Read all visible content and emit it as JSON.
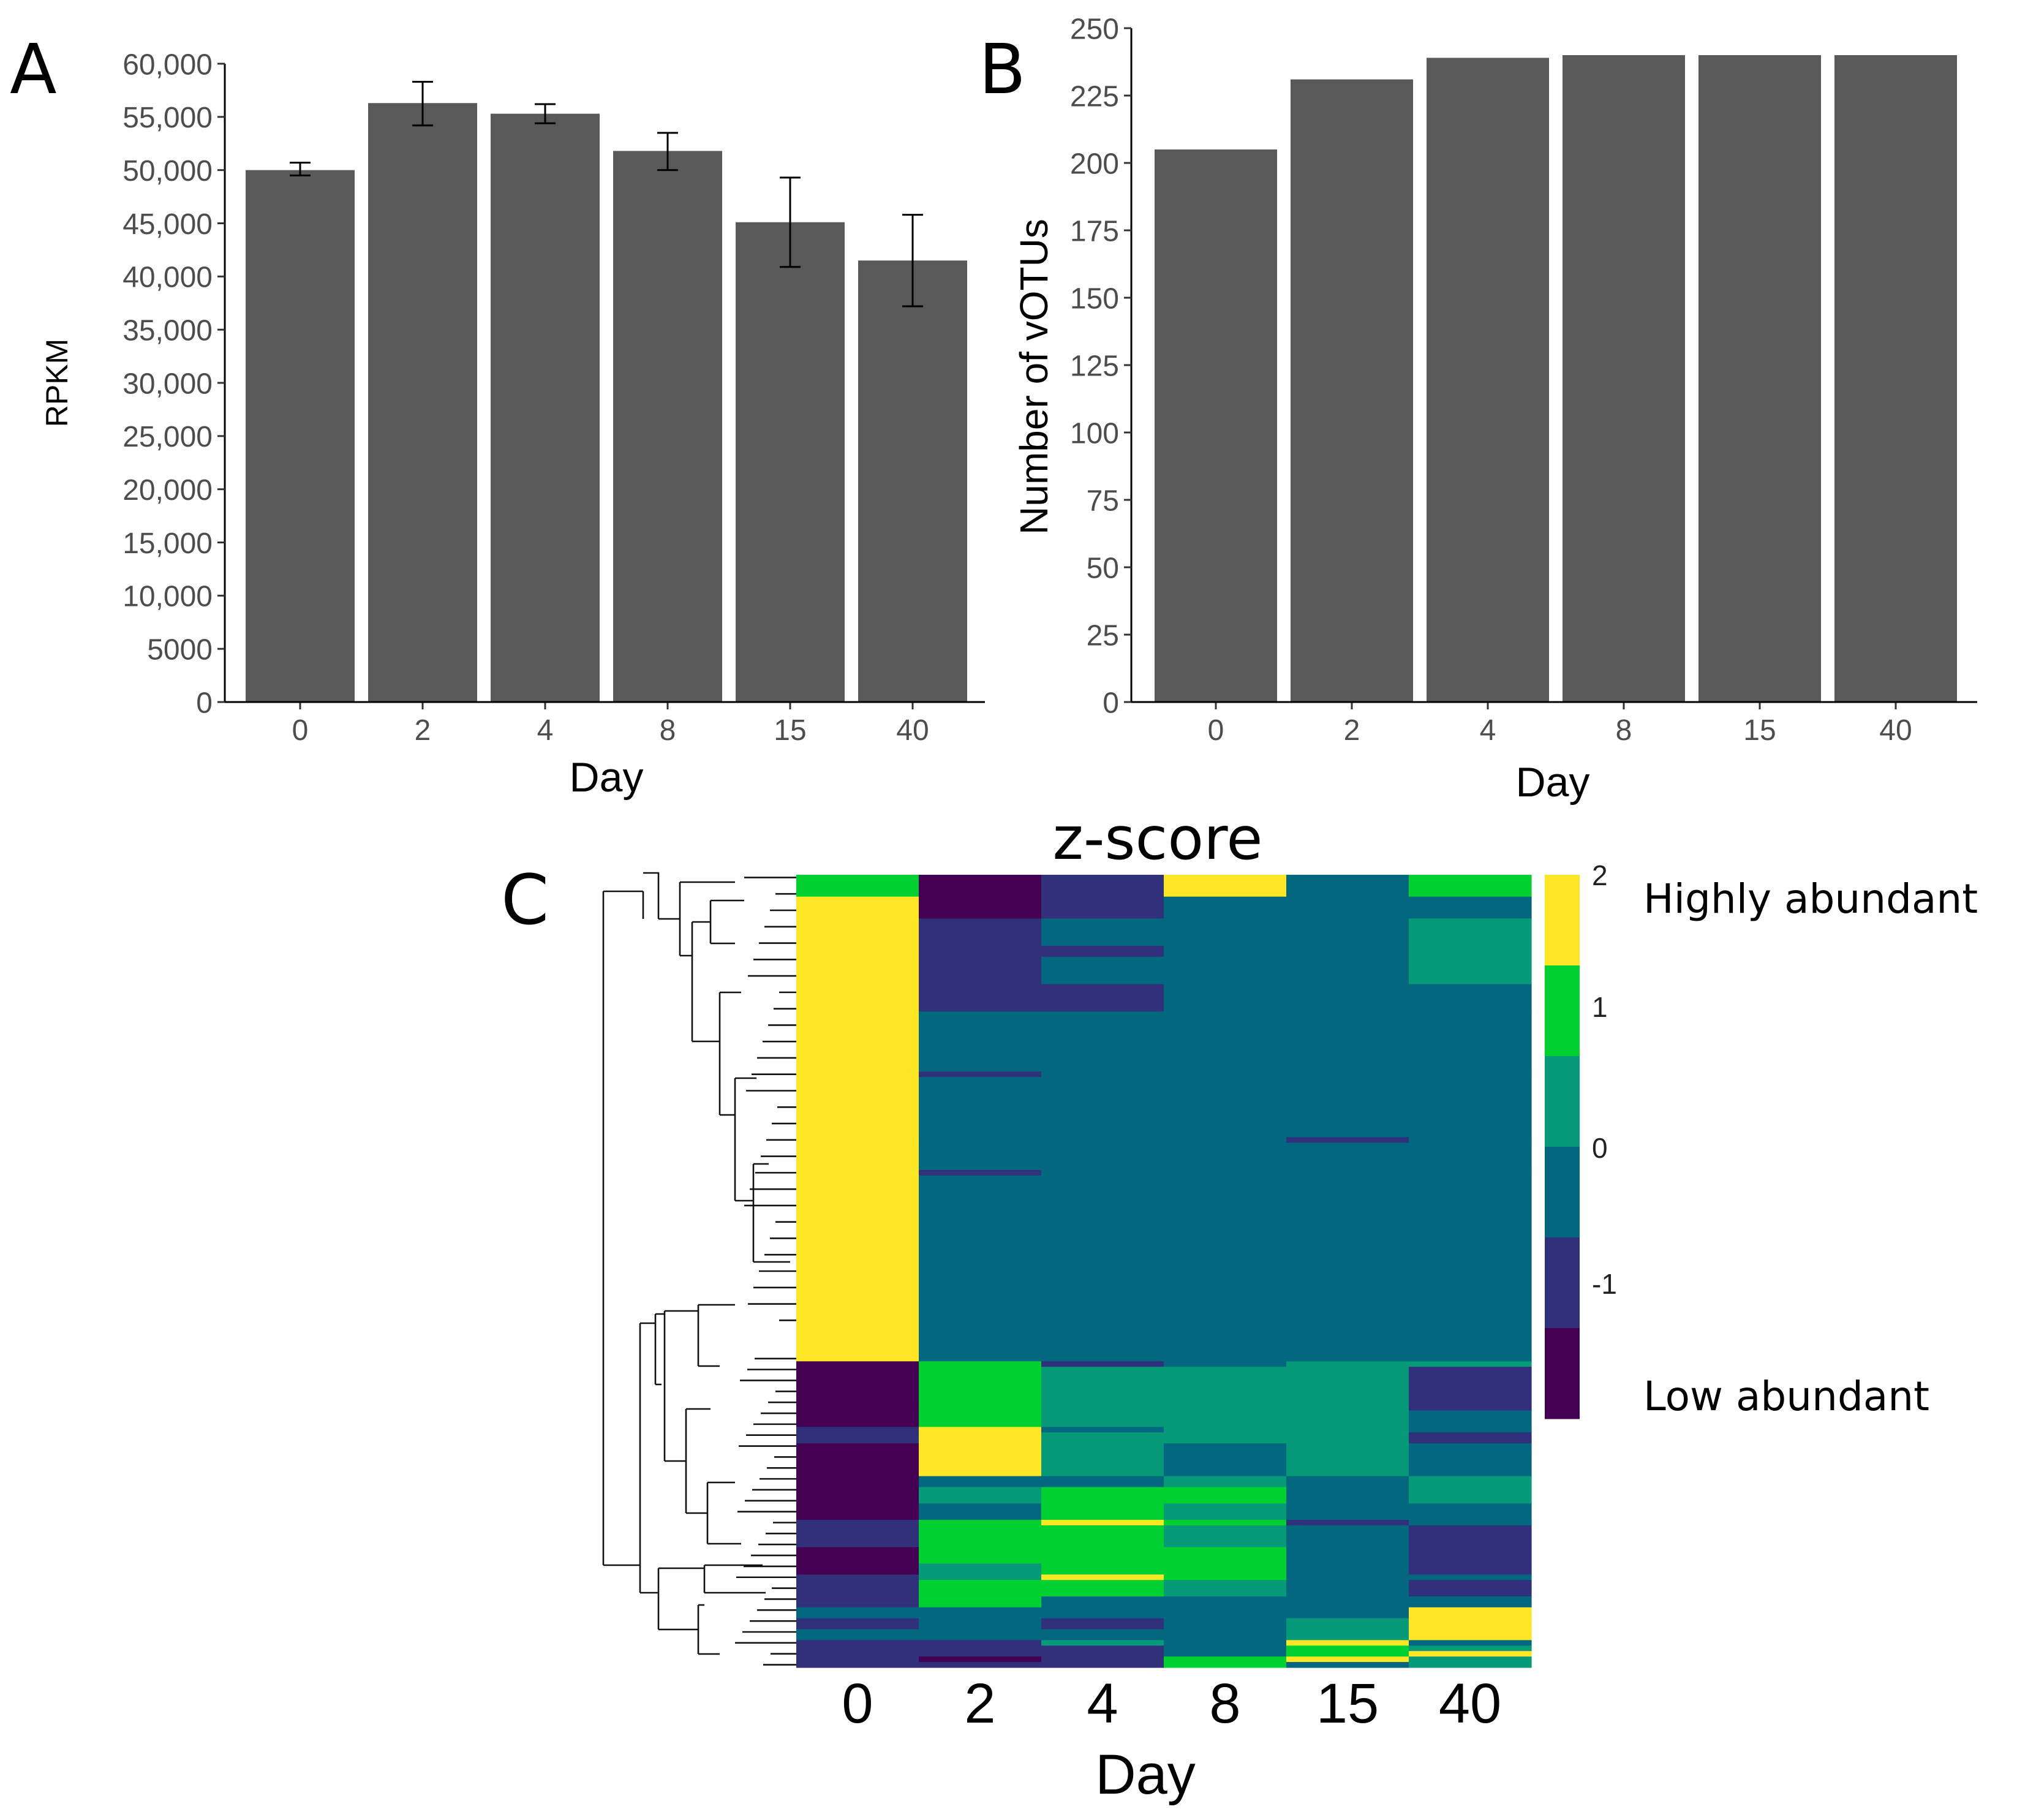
{
  "chart_data": [
    {
      "panel": "A",
      "type": "bar",
      "categories": [
        "0",
        "2",
        "4",
        "8",
        "15",
        "40"
      ],
      "values": [
        50000,
        56300,
        55300,
        51800,
        45100,
        41500
      ],
      "error_low": [
        49500,
        54200,
        54400,
        50000,
        40900,
        37200
      ],
      "error_high": [
        50700,
        58300,
        56200,
        53500,
        49300,
        45800
      ],
      "yticks": [
        0,
        5000,
        10000,
        15000,
        20000,
        25000,
        30000,
        35000,
        40000,
        45000,
        50000,
        55000,
        60000
      ],
      "ytick_labels": [
        "0",
        "5000",
        "10,000",
        "15,000",
        "20,000",
        "25,000",
        "30,000",
        "35,000",
        "40,000",
        "45,000",
        "50,000",
        "55,000",
        "60,000"
      ],
      "ylim": [
        0,
        60000
      ],
      "xlabel": "Day",
      "ylabel": "RPKM",
      "bar_color": "#595959"
    },
    {
      "panel": "B",
      "type": "bar",
      "categories": [
        "0",
        "2",
        "4",
        "8",
        "15",
        "40"
      ],
      "values": [
        205,
        231,
        239,
        240,
        240,
        240
      ],
      "yticks": [
        0,
        25,
        50,
        75,
        100,
        125,
        150,
        175,
        200,
        225,
        250
      ],
      "ytick_labels": [
        "0",
        "25",
        "50",
        "75",
        "100",
        "125",
        "150",
        "175",
        "200",
        "225",
        "250"
      ],
      "ylim": [
        0,
        250
      ],
      "xlabel": "Day",
      "ylabel": "Number of vOTUs",
      "bar_color": "#595959"
    },
    {
      "panel": "C",
      "type": "heatmap",
      "title": "z-score",
      "columns": [
        "0",
        "2",
        "4",
        "8",
        "15",
        "40"
      ],
      "xlabel": "Day",
      "color_levels": [
        {
          "z": -1.5,
          "color": "#440154"
        },
        {
          "z": -1.0,
          "color": "#31307a"
        },
        {
          "z": -0.5,
          "color": "#2f2f7e"
        },
        {
          "z": 0.0,
          "color": "#02677f"
        },
        {
          "z": 0.5,
          "color": "#069a78"
        },
        {
          "z": 1.0,
          "color": "#00d131"
        },
        {
          "z": 2.0,
          "color": "#fde725"
        }
      ],
      "palette": {
        "Y": "#fde725",
        "L": "#00d131",
        "G": "#069a78",
        "T": "#02677f",
        "B": "#31307a",
        "D": "#440154"
      },
      "colorbar": {
        "colors": [
          "#fde725",
          "#00d131",
          "#069a78",
          "#02677f",
          "#31307a",
          "#440154"
        ],
        "tick_values": [
          "2",
          "1",
          "0",
          "-1"
        ],
        "high_label": "Highly abundant",
        "low_label": "Low abundant"
      },
      "row_blocks": [
        {
          "rows": 4,
          "cells": [
            "L",
            "D",
            "B",
            "Y",
            "T",
            "L"
          ]
        },
        {
          "rows": 4,
          "cells": [
            "Y",
            "D",
            "B",
            "T",
            "T",
            "T"
          ]
        },
        {
          "rows": 5,
          "cells": [
            "Y",
            "B",
            "T",
            "T",
            "T",
            "G"
          ]
        },
        {
          "rows": 2,
          "cells": [
            "Y",
            "B",
            "B",
            "T",
            "T",
            "G"
          ]
        },
        {
          "rows": 5,
          "cells": [
            "Y",
            "B",
            "T",
            "T",
            "T",
            "G"
          ]
        },
        {
          "rows": 5,
          "cells": [
            "Y",
            "B",
            "B",
            "T",
            "T",
            "T"
          ]
        },
        {
          "rows": 11,
          "cells": [
            "Y",
            "T",
            "T",
            "T",
            "T",
            "T"
          ]
        },
        {
          "rows": 1,
          "cells": [
            "Y",
            "B",
            "T",
            "T",
            "T",
            "T"
          ]
        },
        {
          "rows": 11,
          "cells": [
            "Y",
            "T",
            "T",
            "T",
            "T",
            "T"
          ]
        },
        {
          "rows": 1,
          "cells": [
            "Y",
            "T",
            "T",
            "T",
            "B",
            "T"
          ]
        },
        {
          "rows": 5,
          "cells": [
            "Y",
            "T",
            "T",
            "T",
            "T",
            "T"
          ]
        },
        {
          "rows": 1,
          "cells": [
            "Y",
            "B",
            "T",
            "T",
            "T",
            "T"
          ]
        },
        {
          "rows": 34,
          "cells": [
            "Y",
            "T",
            "T",
            "T",
            "T",
            "T"
          ]
        },
        {
          "rows": 1,
          "cells": [
            "D",
            "L",
            "B",
            "T",
            "G",
            "G"
          ]
        },
        {
          "rows": 8,
          "cells": [
            "D",
            "L",
            "G",
            "G",
            "G",
            "B"
          ]
        },
        {
          "rows": 3,
          "cells": [
            "D",
            "L",
            "G",
            "G",
            "G",
            "T"
          ]
        },
        {
          "rows": 1,
          "cells": [
            "B",
            "Y",
            "T",
            "G",
            "G",
            "T"
          ]
        },
        {
          "rows": 2,
          "cells": [
            "B",
            "Y",
            "G",
            "G",
            "G",
            "B"
          ]
        },
        {
          "rows": 2,
          "cells": [
            "D",
            "Y",
            "G",
            "T",
            "G",
            "T"
          ]
        },
        {
          "rows": 4,
          "cells": [
            "D",
            "Y",
            "G",
            "T",
            "G",
            "T"
          ]
        },
        {
          "rows": 2,
          "cells": [
            "D",
            "T",
            "T",
            "G",
            "T",
            "G"
          ]
        },
        {
          "rows": 3,
          "cells": [
            "D",
            "G",
            "L",
            "L",
            "T",
            "G"
          ]
        },
        {
          "rows": 3,
          "cells": [
            "D",
            "T",
            "L",
            "G",
            "T",
            "T"
          ]
        },
        {
          "rows": 1,
          "cells": [
            "B",
            "L",
            "Y",
            "L",
            "B",
            "T"
          ]
        },
        {
          "rows": 4,
          "cells": [
            "B",
            "L",
            "L",
            "G",
            "T",
            "B"
          ]
        },
        {
          "rows": 3,
          "cells": [
            "D",
            "L",
            "L",
            "L",
            "T",
            "B"
          ]
        },
        {
          "rows": 2,
          "cells": [
            "D",
            "G",
            "L",
            "L",
            "T",
            "B"
          ]
        },
        {
          "rows": 1,
          "cells": [
            "B",
            "G",
            "Y",
            "L",
            "T",
            "T"
          ]
        },
        {
          "rows": 3,
          "cells": [
            "B",
            "L",
            "L",
            "G",
            "T",
            "B"
          ]
        },
        {
          "rows": 2,
          "cells": [
            "B",
            "L",
            "T",
            "T",
            "T",
            "T"
          ]
        },
        {
          "rows": 2,
          "cells": [
            "T",
            "T",
            "T",
            "T",
            "T",
            "Y"
          ]
        },
        {
          "rows": 2,
          "cells": [
            "B",
            "T",
            "B",
            "T",
            "G",
            "Y"
          ]
        },
        {
          "rows": 2,
          "cells": [
            "T",
            "T",
            "T",
            "T",
            "G",
            "Y"
          ]
        },
        {
          "rows": 1,
          "cells": [
            "B",
            "B",
            "G",
            "T",
            "Y",
            "T"
          ]
        },
        {
          "rows": 1,
          "cells": [
            "B",
            "B",
            "B",
            "T",
            "L",
            "G"
          ]
        },
        {
          "rows": 1,
          "cells": [
            "B",
            "B",
            "B",
            "T",
            "L",
            "Y"
          ]
        },
        {
          "rows": 1,
          "cells": [
            "B",
            "D",
            "B",
            "L",
            "Y",
            "G"
          ]
        },
        {
          "rows": 1,
          "cells": [
            "B",
            "B",
            "B",
            "L",
            "T",
            "G"
          ]
        }
      ]
    }
  ],
  "panel_labels": {
    "a": "A",
    "b": "B",
    "c": "C"
  }
}
